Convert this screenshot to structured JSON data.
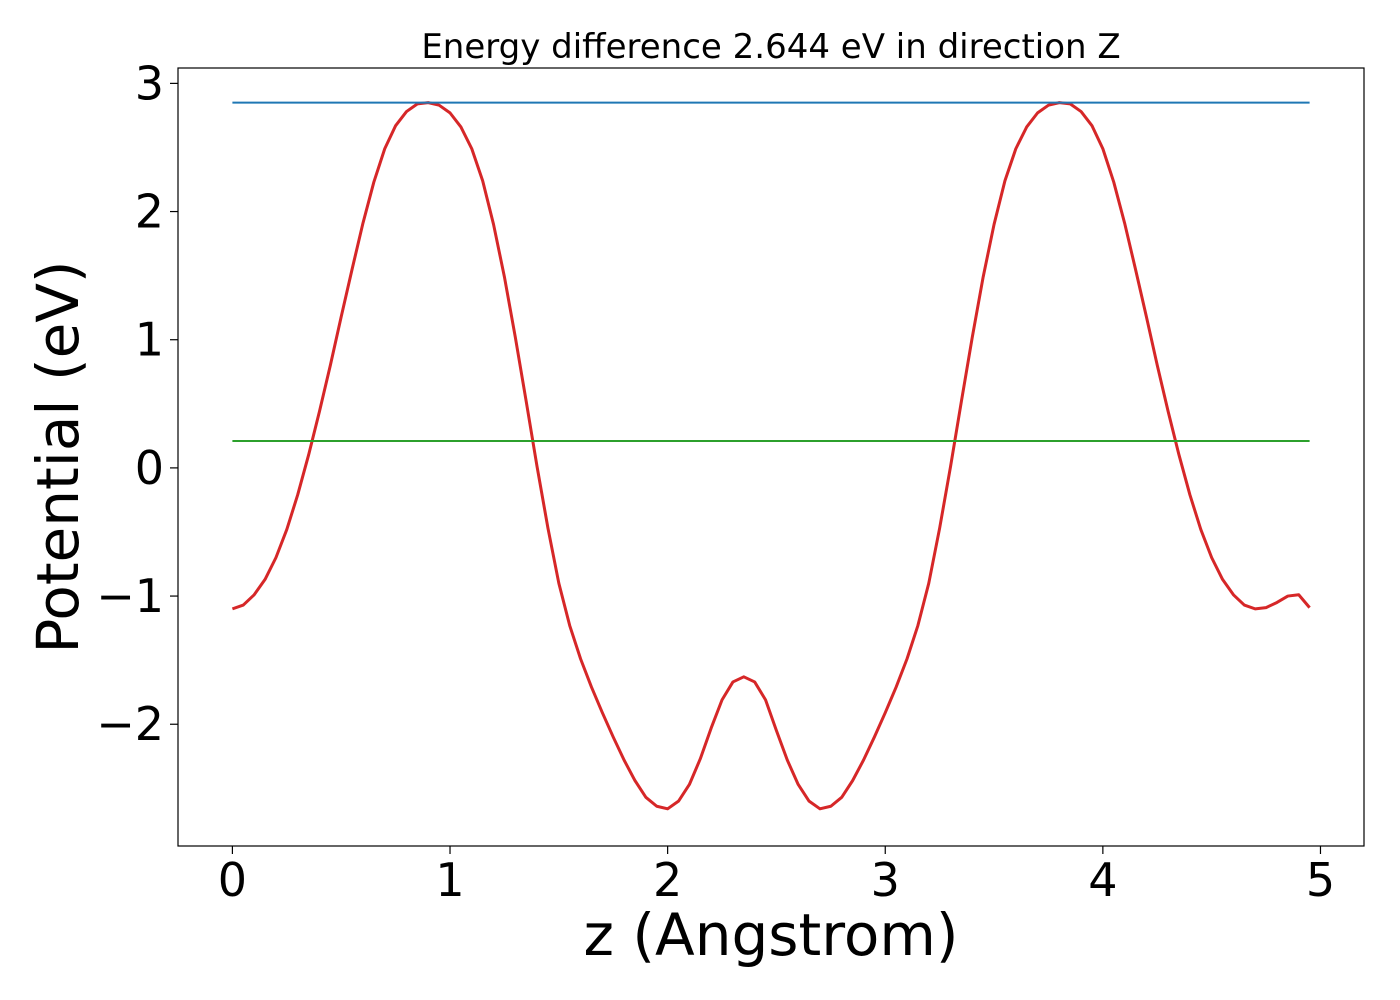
{
  "chart_data": {
    "type": "line",
    "title": "Energy difference 2.644 eV in direction Z",
    "xlabel": "z (Angstrom)",
    "ylabel": "Potential (eV)",
    "xlim": [
      -0.25,
      5.2
    ],
    "ylim": [
      -2.95,
      3.12
    ],
    "xticks": [
      0,
      1,
      2,
      3,
      4,
      5
    ],
    "xtick_labels": [
      "0",
      "1",
      "2",
      "3",
      "4",
      "5"
    ],
    "yticks": [
      -2,
      -1,
      0,
      1,
      2,
      3
    ],
    "ytick_labels": [
      "−2",
      "−1",
      "0",
      "1",
      "2",
      "3"
    ],
    "grid": false,
    "series": [
      {
        "color": "#d62728",
        "x": [
          0.0,
          0.05,
          0.1,
          0.15,
          0.2,
          0.25,
          0.3,
          0.35,
          0.4,
          0.45,
          0.5,
          0.55,
          0.6,
          0.65,
          0.7,
          0.75,
          0.8,
          0.85,
          0.9,
          0.95,
          1.0,
          1.05,
          1.1,
          1.15,
          1.2,
          1.25,
          1.3,
          1.35,
          1.4,
          1.45,
          1.5,
          1.55,
          1.6,
          1.65,
          1.7,
          1.75,
          1.8,
          1.85,
          1.9,
          1.95,
          2.0,
          2.05,
          2.1,
          2.15,
          2.2,
          2.25,
          2.3,
          2.35,
          2.4,
          2.45,
          2.5,
          2.55,
          2.6,
          2.65,
          2.7,
          2.75,
          2.8,
          2.85,
          2.9,
          2.95,
          3.0,
          3.05,
          3.1,
          3.15,
          3.2,
          3.25,
          3.3,
          3.35,
          3.4,
          3.45,
          3.5,
          3.55,
          3.6,
          3.65,
          3.7,
          3.75,
          3.8,
          3.85,
          3.9,
          3.95,
          4.0,
          4.05,
          4.1,
          4.15,
          4.2,
          4.25,
          4.3,
          4.35,
          4.4,
          4.45,
          4.5,
          4.55,
          4.6,
          4.65,
          4.7,
          4.75,
          4.8,
          4.85,
          4.9,
          4.95
        ],
        "values": [
          -1.1,
          -1.07,
          -0.99,
          -0.87,
          -0.7,
          -0.48,
          -0.21,
          0.1,
          0.44,
          0.8,
          1.18,
          1.55,
          1.91,
          2.23,
          2.49,
          2.67,
          2.78,
          2.84,
          2.85,
          2.83,
          2.77,
          2.66,
          2.49,
          2.24,
          1.9,
          1.49,
          1.02,
          0.52,
          0.01,
          -0.47,
          -0.9,
          -1.23,
          -1.49,
          -1.71,
          -1.91,
          -2.1,
          -2.28,
          -2.44,
          -2.57,
          -2.64,
          -2.66,
          -2.6,
          -2.47,
          -2.27,
          -2.03,
          -1.81,
          -1.67,
          -1.63,
          -1.67,
          -1.81,
          -2.05,
          -2.28,
          -2.47,
          -2.6,
          -2.66,
          -2.64,
          -2.57,
          -2.44,
          -2.28,
          -2.1,
          -1.91,
          -1.71,
          -1.49,
          -1.23,
          -0.9,
          -0.47,
          0.01,
          0.52,
          1.02,
          1.49,
          1.9,
          2.24,
          2.49,
          2.66,
          2.77,
          2.83,
          2.85,
          2.84,
          2.78,
          2.67,
          2.49,
          2.23,
          1.91,
          1.55,
          1.18,
          0.8,
          0.44,
          0.1,
          -0.21,
          -0.48,
          -0.7,
          -0.87,
          -0.99,
          -1.07,
          -1.1,
          -1.09,
          -1.05,
          -1.0,
          -0.99,
          -1.09
        ]
      },
      {
        "color": "#2ca02c",
        "x": [
          0.0,
          4.95
        ],
        "values": [
          0.21,
          0.21
        ]
      },
      {
        "color": "#1f77b4",
        "x": [
          0.0,
          4.95
        ],
        "values": [
          2.85,
          2.85
        ]
      }
    ]
  }
}
